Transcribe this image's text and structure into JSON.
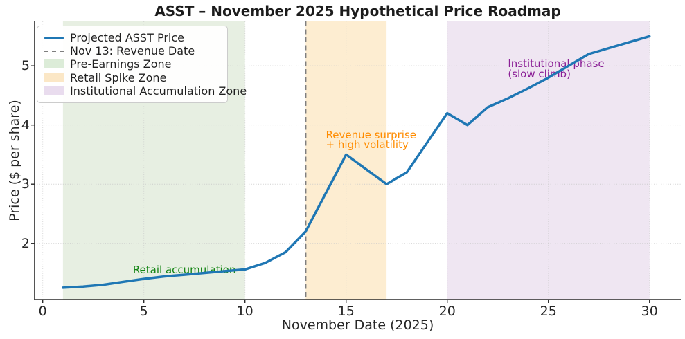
{
  "title": "ASST – November 2025 Hypothetical Price Roadmap",
  "chart_data": {
    "type": "line",
    "title": "ASST – November 2025 Hypothetical Price Roadmap",
    "xlabel": "November Date (2025)",
    "ylabel": "Price ($ per share)",
    "xlim": [
      -0.4,
      31.55
    ],
    "ylim": [
      1.05,
      5.75
    ],
    "xticks": [
      0,
      5,
      10,
      15,
      20,
      25,
      30
    ],
    "yticks": [
      2,
      3,
      4,
      5
    ],
    "grid": true,
    "grid_color": "#c9c9c9",
    "spine_color": "#2b2b2b",
    "series": [
      {
        "name": "Projected ASST Price",
        "color": "#1f77b4",
        "line_width": 3.5,
        "x": [
          1,
          2,
          3,
          4,
          5,
          6,
          7,
          8,
          9,
          10,
          11,
          12,
          13,
          14,
          15,
          16,
          17,
          18,
          19,
          20,
          21,
          22,
          23,
          24,
          25,
          26,
          27,
          28,
          29,
          30
        ],
        "values": [
          1.25,
          1.27,
          1.3,
          1.35,
          1.4,
          1.44,
          1.47,
          1.5,
          1.53,
          1.56,
          1.67,
          1.85,
          2.2,
          2.85,
          3.5,
          3.25,
          3.0,
          3.2,
          3.7,
          4.2,
          4.0,
          4.3,
          4.45,
          4.62,
          4.8,
          5.0,
          5.2,
          5.3,
          5.4,
          5.5
        ]
      }
    ],
    "vline": {
      "x": 13,
      "label": "Nov 13: Revenue Date",
      "color": "#7f7f7f",
      "style": "dashed"
    },
    "zones": [
      {
        "name": "pre-earnings",
        "label": "Pre-Earnings Zone",
        "xmin": 1,
        "xmax": 10,
        "fill": "#e7efe2"
      },
      {
        "name": "retail-spike",
        "label": "Retail Spike Zone",
        "xmin": 13,
        "xmax": 17,
        "fill": "#fdedd1"
      },
      {
        "name": "institutional-accumulation",
        "label": "Institutional Accumulation Zone",
        "xmin": 20,
        "xmax": 30,
        "fill": "#efe6f2"
      }
    ],
    "annotations": [
      {
        "lines": [
          "Retail accumulation"
        ],
        "x": 7,
        "y": 1.55,
        "color": "#148514",
        "align": "center"
      },
      {
        "lines": [
          "Revenue surprise",
          "+ high volatility"
        ],
        "x": 14,
        "y": 3.83,
        "color": "#ff8c00",
        "align": "left"
      },
      {
        "lines": [
          "Institutional phase",
          "(slow climb)"
        ],
        "x": 23,
        "y": 5.03,
        "color": "#8b1f96",
        "align": "left"
      }
    ],
    "legend": {
      "position": "upper left",
      "items": [
        {
          "label": "Projected ASST Price",
          "swatch": "line",
          "color": "#1f77b4"
        },
        {
          "label": "Nov 13: Revenue Date",
          "swatch": "dashed-line",
          "color": "#7f7f7f"
        },
        {
          "label": "Pre-Earnings Zone",
          "swatch": "patch",
          "color": "#dcecd8"
        },
        {
          "label": "Retail Spike Zone",
          "swatch": "patch",
          "color": "#fbe7c6"
        },
        {
          "label": "Institutional Accumulation Zone",
          "swatch": "patch",
          "color": "#e9dcee"
        }
      ]
    }
  }
}
